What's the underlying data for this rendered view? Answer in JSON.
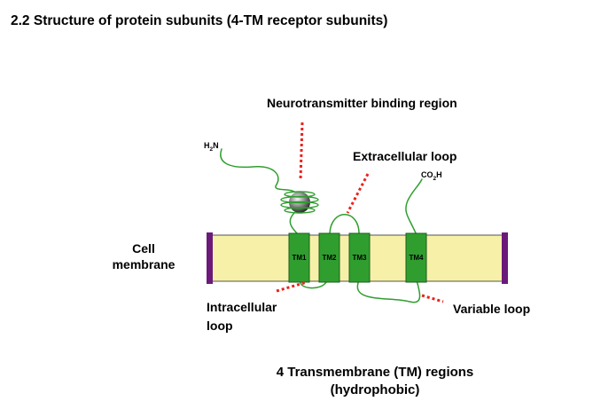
{
  "title": "2.2 Structure of protein subunits (4-TM receptor subunits)",
  "labels": {
    "binding_region": "Neurotransmitter binding region",
    "extracellular_loop": "Extracellular loop",
    "cell_membrane_line1": "Cell",
    "cell_membrane_line2": "membrane",
    "intracellular_loop_line1": "Intracellular",
    "intracellular_loop_line2": "loop",
    "variable_loop": "Variable loop",
    "tm_regions_line1": "4  Transmembrane (TM) regions",
    "tm_regions_line2": "(hydrophobic)"
  },
  "termini": {
    "n_terminus": {
      "main": "H",
      "sub": "2",
      "tail": "N"
    },
    "c_terminus": {
      "main": "CO",
      "sub": "2",
      "tail": "H"
    }
  },
  "tm_segments": [
    "TM1",
    "TM2",
    "TM3",
    "TM4"
  ],
  "colors": {
    "membrane_fill": "#f7f0a8",
    "membrane_edge": "#6b1a7a",
    "tm_fill": "#2f9e2f",
    "chain": "#2f9e2f",
    "pointer": "#e8231e"
  }
}
